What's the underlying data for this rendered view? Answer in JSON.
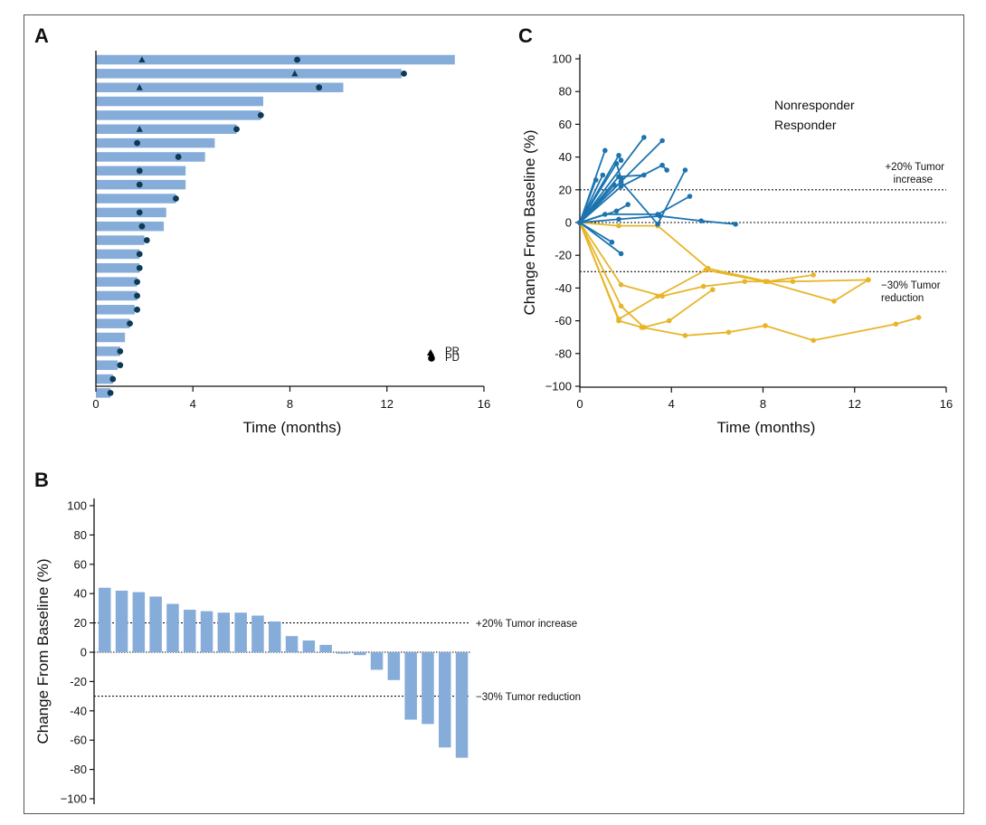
{
  "colors": {
    "bar": "#86ACD9",
    "marker": "#0E3A55",
    "nonresponder": "#1B74B0",
    "responder": "#E8B52A",
    "axis": "#111111"
  },
  "chart_data": [
    {
      "panel": "A",
      "type": "bar",
      "orientation": "horizontal",
      "xlabel": "Time (months)",
      "xlim": [
        0,
        16
      ],
      "xticks": [
        "0",
        "4",
        "8",
        "12",
        "16"
      ],
      "durations": [
        14.8,
        12.6,
        10.2,
        6.9,
        6.8,
        5.8,
        4.9,
        4.5,
        3.7,
        3.7,
        3.3,
        2.9,
        2.8,
        2.0,
        1.8,
        1.8,
        1.7,
        1.7,
        1.6,
        1.4,
        1.2,
        1.0,
        0.9,
        0.7,
        0.6
      ],
      "pr_events": [
        [
          0,
          1.9
        ],
        [
          1,
          8.2
        ],
        [
          2,
          1.8
        ],
        [
          5,
          1.8
        ]
      ],
      "pd_events": [
        [
          0,
          8.3
        ],
        [
          1,
          12.7
        ],
        [
          2,
          9.2
        ],
        [
          4,
          6.8
        ],
        [
          5,
          5.8
        ],
        [
          6,
          1.7
        ],
        [
          7,
          3.4
        ],
        [
          8,
          1.8
        ],
        [
          9,
          1.8
        ],
        [
          10,
          3.3
        ],
        [
          11,
          1.8
        ],
        [
          12,
          1.9
        ],
        [
          13,
          2.1
        ],
        [
          14,
          1.8
        ],
        [
          15,
          1.8
        ],
        [
          16,
          1.7
        ],
        [
          17,
          1.7
        ],
        [
          18,
          1.7
        ],
        [
          19,
          1.4
        ],
        [
          21,
          1.0
        ],
        [
          22,
          1.0
        ],
        [
          23,
          0.7
        ],
        [
          24,
          0.6
        ]
      ],
      "legend": [
        {
          "symbol": "triangle",
          "label": "PR"
        },
        {
          "symbol": "circle",
          "label": "PD"
        }
      ]
    },
    {
      "panel": "B",
      "type": "bar",
      "ylabel": "Change From Baseline (%)",
      "ylim": [
        -100,
        100
      ],
      "yticks": [
        "100",
        "80",
        "60",
        "40",
        "20",
        "0",
        "-20",
        "-40",
        "-60",
        "-80",
        "−100"
      ],
      "values": [
        44,
        42,
        41,
        38,
        33,
        29,
        28,
        27,
        27,
        25,
        21,
        11,
        8,
        5,
        -1,
        -2,
        -12,
        -19,
        -46,
        -49,
        -65,
        -72
      ],
      "reference_lines": [
        {
          "y": 20,
          "label": "+20% Tumor increase"
        },
        {
          "y": -30,
          "label": "−30% Tumor reduction"
        }
      ]
    },
    {
      "panel": "C",
      "type": "line",
      "xlabel": "Time (months)",
      "ylabel": "Change From Baseline (%)",
      "xlim": [
        0,
        16
      ],
      "ylim": [
        -100,
        100
      ],
      "xticks": [
        "0",
        "4",
        "8",
        "12",
        "16"
      ],
      "yticks": [
        "100",
        "80",
        "60",
        "40",
        "20",
        "0",
        "-20",
        "-40",
        "-60",
        "-80",
        "−100"
      ],
      "legend": [
        "Nonresponder",
        "Responder"
      ],
      "reference_lines": [
        {
          "y": 20,
          "label": [
            "+20% Tumor",
            "increase"
          ]
        },
        {
          "y": -30,
          "label": [
            "−30% Tumor",
            "reduction"
          ]
        }
      ],
      "series": [
        {
          "group": "Nonresponder",
          "points": [
            [
              0,
              0
            ],
            [
              1.1,
              44
            ]
          ]
        },
        {
          "group": "Nonresponder",
          "points": [
            [
              0,
              0
            ],
            [
              1.7,
              41
            ],
            [
              1.8,
              38
            ]
          ]
        },
        {
          "group": "Nonresponder",
          "points": [
            [
              0,
              0
            ],
            [
              1.6,
              36
            ],
            [
              1.8,
              27
            ]
          ]
        },
        {
          "group": "Nonresponder",
          "points": [
            [
              0,
              0
            ],
            [
              2.8,
              52
            ]
          ]
        },
        {
          "group": "Nonresponder",
          "points": [
            [
              0,
              0
            ],
            [
              3.6,
              50
            ]
          ]
        },
        {
          "group": "Nonresponder",
          "points": [
            [
              0,
              0
            ],
            [
              1.8,
              22
            ],
            [
              3.6,
              35
            ],
            [
              3.8,
              32
            ]
          ]
        },
        {
          "group": "Nonresponder",
          "points": [
            [
              0,
              0
            ],
            [
              1.0,
              29
            ]
          ]
        },
        {
          "group": "Nonresponder",
          "points": [
            [
              0,
              0
            ],
            [
              0.7,
              26
            ]
          ]
        },
        {
          "group": "Nonresponder",
          "points": [
            [
              0,
              0
            ],
            [
              1.7,
              28
            ],
            [
              2.8,
              29
            ]
          ]
        },
        {
          "group": "Nonresponder",
          "points": [
            [
              0,
              0
            ],
            [
              1.5,
              23
            ]
          ]
        },
        {
          "group": "Nonresponder",
          "points": [
            [
              0,
              0
            ],
            [
              1.8,
              25
            ],
            [
              3.4,
              -1
            ],
            [
              4.6,
              32
            ]
          ]
        },
        {
          "group": "Nonresponder",
          "points": [
            [
              0,
              0
            ],
            [
              1.6,
              7
            ],
            [
              2.1,
              11
            ]
          ]
        },
        {
          "group": "Nonresponder",
          "points": [
            [
              0,
              0
            ],
            [
              1.1,
              5
            ],
            [
              3.4,
              5
            ],
            [
              4.8,
              16
            ]
          ]
        },
        {
          "group": "Nonresponder",
          "points": [
            [
              0,
              0
            ],
            [
              1.7,
              2
            ],
            [
              3.5,
              4
            ],
            [
              5.3,
              1
            ],
            [
              6.8,
              -1
            ]
          ]
        },
        {
          "group": "Nonresponder",
          "points": [
            [
              0,
              0
            ],
            [
              1.4,
              -12
            ]
          ]
        },
        {
          "group": "Nonresponder",
          "points": [
            [
              0,
              0
            ],
            [
              1.8,
              -19
            ]
          ]
        },
        {
          "group": "Responder",
          "points": [
            [
              0,
              0
            ],
            [
              1.7,
              -2
            ],
            [
              3.4,
              -2
            ],
            [
              5.6,
              -28
            ],
            [
              8.2,
              -36
            ],
            [
              10.2,
              -32
            ]
          ]
        },
        {
          "group": "Responder",
          "points": [
            [
              0,
              0
            ],
            [
              1.8,
              -38
            ],
            [
              3.6,
              -45
            ],
            [
              5.4,
              -39
            ],
            [
              7.2,
              -36
            ],
            [
              9.3,
              -36
            ],
            [
              12.6,
              -35
            ]
          ]
        },
        {
          "group": "Responder",
          "points": [
            [
              0,
              0
            ],
            [
              1.8,
              -51
            ],
            [
              2.8,
              -64
            ],
            [
              3.9,
              -60
            ],
            [
              5.8,
              -41
            ]
          ]
        },
        {
          "group": "Responder",
          "points": [
            [
              0,
              0
            ],
            [
              1.7,
              -59
            ],
            [
              3.4,
              -45
            ],
            [
              5.5,
              -29
            ],
            [
              8.1,
              -36
            ],
            [
              11.1,
              -48
            ],
            [
              12.6,
              -35
            ]
          ]
        },
        {
          "group": "Responder",
          "points": [
            [
              0,
              0
            ],
            [
              1.7,
              -60
            ],
            [
              2.7,
              -64
            ],
            [
              4.6,
              -69
            ],
            [
              6.5,
              -67
            ],
            [
              8.1,
              -63
            ],
            [
              10.2,
              -72
            ],
            [
              13.8,
              -62
            ],
            [
              14.8,
              -58
            ]
          ]
        }
      ]
    }
  ]
}
